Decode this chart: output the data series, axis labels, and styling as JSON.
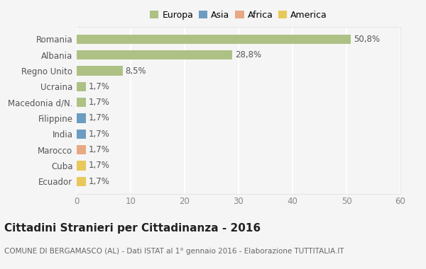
{
  "countries": [
    "Romania",
    "Albania",
    "Regno Unito",
    "Ucraina",
    "Macedonia d/N.",
    "Filippine",
    "India",
    "Marocco",
    "Cuba",
    "Ecuador"
  ],
  "values": [
    50.8,
    28.8,
    8.5,
    1.7,
    1.7,
    1.7,
    1.7,
    1.7,
    1.7,
    1.7
  ],
  "labels": [
    "50,8%",
    "28,8%",
    "8,5%",
    "1,7%",
    "1,7%",
    "1,7%",
    "1,7%",
    "1,7%",
    "1,7%",
    "1,7%"
  ],
  "bar_colors": [
    "#aec185",
    "#aec185",
    "#aec185",
    "#aec185",
    "#aec185",
    "#6b9dc2",
    "#6b9dc2",
    "#e8a882",
    "#e8c85a",
    "#e8c85a"
  ],
  "legend_labels": [
    "Europa",
    "Asia",
    "Africa",
    "America"
  ],
  "legend_colors": [
    "#aec185",
    "#6b9dc2",
    "#e8a882",
    "#e8c85a"
  ],
  "xlim": [
    0,
    60
  ],
  "xticks": [
    0,
    10,
    20,
    30,
    40,
    50,
    60
  ],
  "title": "Cittadini Stranieri per Cittadinanza - 2016",
  "subtitle": "COMUNE DI BERGAMASCO (AL) - Dati ISTAT al 1° gennaio 2016 - Elaborazione TUTTITALIA.IT",
  "bg_color": "#f5f5f5",
  "grid_color": "#ffffff",
  "bar_height": 0.6,
  "label_fontsize": 8.5,
  "tick_fontsize": 8.5,
  "title_fontsize": 11,
  "subtitle_fontsize": 7.5
}
